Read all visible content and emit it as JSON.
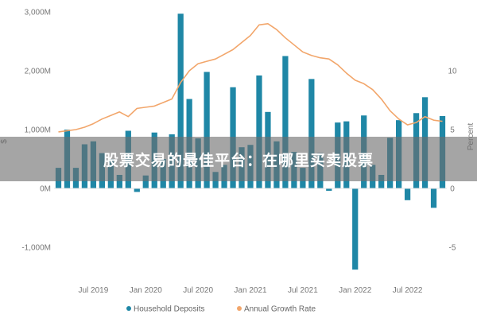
{
  "chart_data": {
    "type": "bar",
    "title": "",
    "xlabel": "",
    "ylabel": "$",
    "y2label": "Percent",
    "ylim": [
      -1500,
      3000
    ],
    "y2lim": [
      -7.5,
      15
    ],
    "y_ticks": [
      3000,
      2000,
      1000,
      0,
      -1000
    ],
    "y_tick_labels": [
      "3,000M",
      "2,000M",
      "1,000M",
      "0M",
      "-1,000M"
    ],
    "y2_ticks": [
      10,
      5,
      0,
      -5
    ],
    "y2_tick_labels": [
      "10",
      "5",
      "0",
      "-5"
    ],
    "x_tick_labels": [
      {
        "index": 4,
        "label": "Jul 2019"
      },
      {
        "index": 10,
        "label": "Jan 2020"
      },
      {
        "index": 16,
        "label": "Jul 2020"
      },
      {
        "index": 22,
        "label": "Jan 2021"
      },
      {
        "index": 28,
        "label": "Jul 2021"
      },
      {
        "index": 34,
        "label": "Jan 2022"
      },
      {
        "index": 40,
        "label": "Jul 2022"
      }
    ],
    "legend_position": "bottom",
    "grid": false,
    "series": [
      {
        "name": "Household Deposits",
        "kind": "bar",
        "axis": "left",
        "color": "#1f87a6",
        "values": [
          350,
          1000,
          350,
          750,
          800,
          600,
          500,
          230,
          980,
          -60,
          220,
          950,
          500,
          920,
          2970,
          1520,
          850,
          1980,
          280,
          400,
          1720,
          700,
          740,
          1920,
          1300,
          800,
          2250,
          620,
          350,
          1860,
          600,
          -40,
          1120,
          1140,
          -1380,
          1240,
          400,
          230,
          860,
          1160,
          -200,
          1280,
          1550,
          -330,
          1230
        ]
      },
      {
        "name": "Annual Growth Rate",
        "kind": "line",
        "axis": "right",
        "color": "#f2a66b",
        "values": [
          4.8,
          4.9,
          5.0,
          5.2,
          5.5,
          5.9,
          6.2,
          6.5,
          6.1,
          6.8,
          6.9,
          7.0,
          7.3,
          7.6,
          9.0,
          10.0,
          10.6,
          10.8,
          11.0,
          11.4,
          11.8,
          12.4,
          13.0,
          13.9,
          14.0,
          13.5,
          12.8,
          12.2,
          11.6,
          11.3,
          11.1,
          11.0,
          10.5,
          9.8,
          9.2,
          8.9,
          8.4,
          7.6,
          6.6,
          5.9,
          5.4,
          5.6,
          6.1,
          5.8,
          5.7
        ]
      }
    ]
  },
  "legend": {
    "items": [
      {
        "label": "Household Deposits",
        "color": "#1f87a6"
      },
      {
        "label": "Annual Growth Rate",
        "color": "#f2a66b"
      }
    ]
  },
  "overlay": {
    "text": "股票交易的最佳平台：在哪里买卖股票"
  }
}
